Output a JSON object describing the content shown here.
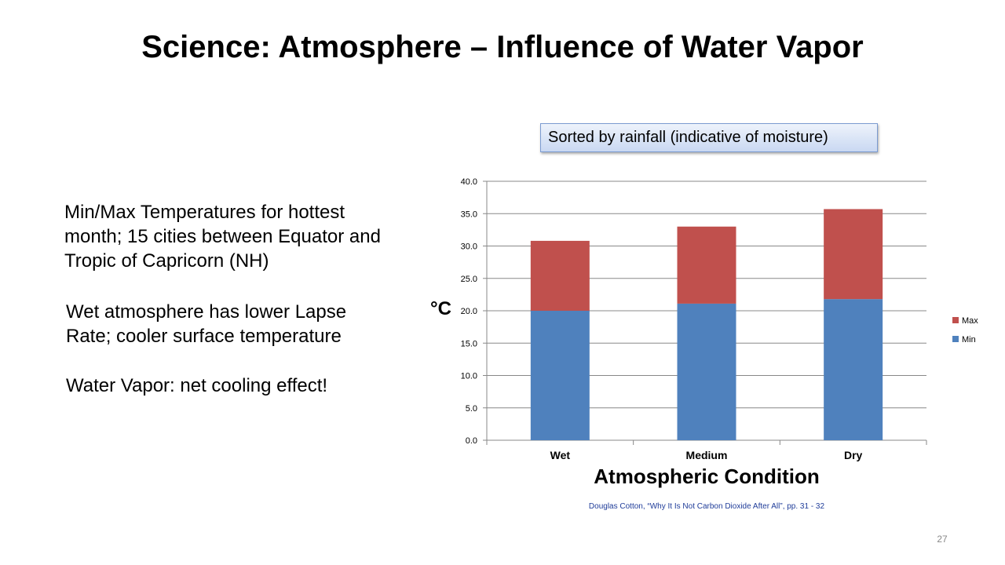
{
  "slide": {
    "title": "Science:  Atmosphere – Influence of Water Vapor",
    "paragraphs": [
      "Min/Max Temperatures for hottest month; 15 cities between Equator and Tropic of Capricorn (NH)",
      "Wet atmosphere has lower Lapse Rate; cooler surface temperature",
      "Water Vapor: net cooling effect!"
    ],
    "callout": "Sorted by rainfall (indicative of moisture)",
    "citation": "Douglas Cotton, “Why It Is Not Carbon Dioxide After All”, pp. 31 - 32",
    "page_number": "27"
  },
  "chart_data": {
    "type": "bar",
    "stacked": true,
    "categories": [
      "Wet",
      "Medium",
      "Dry"
    ],
    "series": [
      {
        "name": "Min",
        "values": [
          20.0,
          21.1,
          21.8
        ],
        "color": "#4f81bd"
      },
      {
        "name": "Max",
        "values": [
          10.8,
          11.9,
          13.9
        ],
        "color": "#c0504d"
      }
    ],
    "xlabel": "Atmospheric Condition",
    "ylabel": "°C",
    "ylim": [
      0,
      40
    ],
    "yticks": [
      "0.0",
      "5.0",
      "10.0",
      "15.0",
      "20.0",
      "25.0",
      "30.0",
      "35.0",
      "40.0"
    ],
    "grid": true,
    "legend_placement": "right"
  }
}
